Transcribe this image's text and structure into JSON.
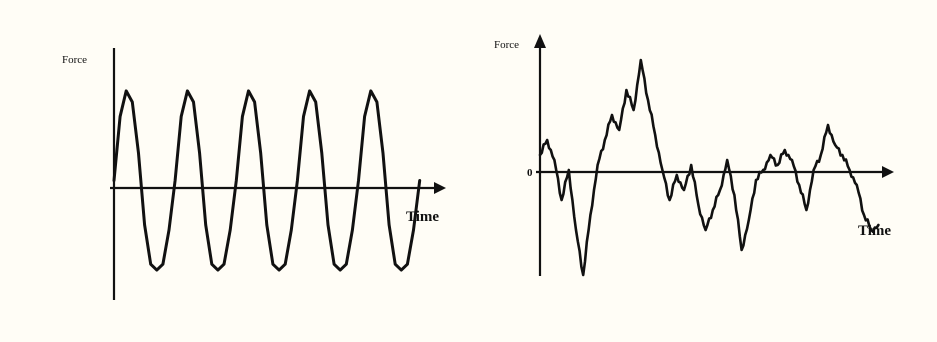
{
  "chart_data": [
    {
      "type": "line",
      "ylabel": "Force",
      "xlabel": "Time",
      "grid": false,
      "legend": "none",
      "xlim": [
        0,
        5.3
      ],
      "ylim": [
        -1.4,
        1.6
      ],
      "series": [
        {
          "x": [
            0,
            0.1,
            0.2,
            0.3,
            0.4,
            0.5,
            0.6,
            0.7,
            0.8,
            0.9,
            1.0,
            1.1,
            1.2,
            1.3,
            1.4,
            1.5,
            1.6,
            1.7,
            1.8,
            1.9,
            2.0,
            2.1,
            2.2,
            2.3,
            2.4,
            2.5,
            2.6,
            2.7,
            2.8,
            2.9,
            3.0,
            3.1,
            3.2,
            3.3,
            3.4,
            3.5,
            3.6,
            3.7,
            3.8,
            3.9,
            4.0,
            4.1,
            4.2,
            4.3,
            4.4,
            4.5,
            4.6,
            4.7,
            4.8,
            4.9,
            5.0
          ],
          "y": [
            0,
            0.75,
            1.05,
            0.92,
            0.32,
            -0.52,
            -0.98,
            -1.05,
            -0.98,
            -0.58,
            0,
            0.75,
            1.05,
            0.92,
            0.32,
            -0.52,
            -0.98,
            -1.05,
            -0.98,
            -0.58,
            0,
            0.75,
            1.05,
            0.92,
            0.32,
            -0.52,
            -0.98,
            -1.05,
            -0.98,
            -0.58,
            0,
            0.75,
            1.05,
            0.92,
            0.32,
            -0.52,
            -0.98,
            -1.05,
            -0.98,
            -0.58,
            0,
            0.75,
            1.05,
            0.92,
            0.32,
            -0.52,
            -0.98,
            -1.05,
            -0.98,
            -0.58,
            0
          ]
        }
      ]
    },
    {
      "type": "line",
      "ylabel": "Force",
      "xlabel": "Time",
      "y_zero_label": "0",
      "grid": false,
      "legend": "none",
      "xlim": [
        0,
        10
      ],
      "ylim": [
        -2.4,
        2.8
      ],
      "series": [
        {
          "x": [
            0,
            0.2,
            0.4,
            0.6,
            0.8,
            1.0,
            1.2,
            1.4,
            1.6,
            1.8,
            2.0,
            2.2,
            2.4,
            2.6,
            2.8,
            3.0,
            3.2,
            3.4,
            3.6,
            3.8,
            4.0,
            4.2,
            4.4,
            4.6,
            4.8,
            5.0,
            5.2,
            5.4,
            5.6,
            5.8,
            6.0,
            6.2,
            6.4,
            6.6,
            6.8,
            7.0,
            7.2,
            7.4,
            7.6,
            7.8,
            8.0,
            8.2,
            8.4,
            8.6,
            8.8,
            9.0,
            9.2,
            9.4
          ],
          "y": [
            0.5,
            0.8,
            0.4,
            -0.4,
            0.2,
            -1.0,
            -1.9,
            -0.7,
            0.3,
            0.8,
            1.3,
            1.0,
            1.8,
            1.4,
            2.4,
            1.6,
            0.9,
            0.2,
            -0.4,
            0.1,
            -0.2,
            0.3,
            -0.5,
            -1.0,
            -0.6,
            -0.2,
            0.4,
            -0.3,
            -1.4,
            -0.8,
            0.0,
            0.2,
            0.5,
            0.3,
            0.6,
            0.4,
            -0.1,
            -0.6,
            0.2,
            0.5,
            1.1,
            0.7,
            0.5,
            0.2,
            -0.1,
            -0.7,
            -1.0,
            -0.9
          ]
        }
      ]
    }
  ]
}
